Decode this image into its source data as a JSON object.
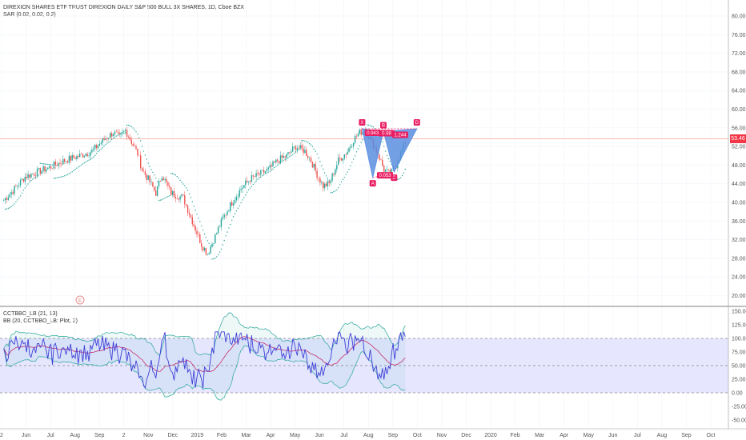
{
  "legend": {
    "symbol": "DIREXION SHARES ETF TRUST DIREXION DAILY S&P 500 BULL 3X SHARES, 1D, Cboe BZX",
    "sar": "SAR (0.02, 0.02, 0.2)",
    "osc": "CCTBBO_LB (21, 13)",
    "bb": "BB (20, CCTBBO_LB: Plot, 2)"
  },
  "last_price": "53.46",
  "event_marker": "E",
  "colors": {
    "up": "#26a69a",
    "down": "#ef5350",
    "sar": "#26a69a",
    "pattern_fill": "#5a8ee0",
    "pattern_label": "#e91e63",
    "osc_line": "#3f3fd8",
    "bb_basis": "#c2185b",
    "bb_band": "#26a69a",
    "osc_bg": "#e6e6ff",
    "price_line": "#f7a199"
  },
  "chart_data": [
    {
      "type": "candlestick",
      "title": "DIREXION SHARES ETF TRUST DIREXION DAILY S&P 500 BULL 3X SHARES, 1D, Cboe BZX",
      "y_ticks": [
        "80.00",
        "76.00",
        "72.00",
        "68.00",
        "64.00",
        "60.00",
        "56.00",
        "52.00",
        "48.00",
        "44.00",
        "40.00",
        "36.00",
        "32.00",
        "28.00",
        "24.00",
        "20.00"
      ],
      "ylim": [
        18.4,
        82.0
      ],
      "x_ticks": [
        "2",
        "Jun",
        "Jul",
        "Aug",
        "Sep",
        "2",
        "Nov",
        "Dec",
        "2019",
        "Feb",
        "Mar",
        "Apr",
        "May",
        "Jun",
        "Jul",
        "Aug",
        "Sep",
        "Oct",
        "Nov",
        "Dec",
        "2020",
        "Feb",
        "Mar",
        "Apr",
        "May",
        "Jun",
        "Jul",
        "Aug",
        "Sep",
        "Oct"
      ],
      "anchors": [
        [
          0,
          40.5
        ],
        [
          6,
          42.5
        ],
        [
          14,
          45.5
        ],
        [
          22,
          46.5
        ],
        [
          30,
          47.5
        ],
        [
          40,
          49
        ],
        [
          50,
          50
        ],
        [
          58,
          51
        ],
        [
          66,
          53.5
        ],
        [
          72,
          55
        ],
        [
          76,
          54
        ],
        [
          80,
          55.5
        ],
        [
          84,
          53
        ],
        [
          88,
          50.5
        ],
        [
          91,
          47
        ],
        [
          95,
          45
        ],
        [
          100,
          42
        ],
        [
          104,
          46
        ],
        [
          110,
          42
        ],
        [
          118,
          41
        ],
        [
          124,
          36
        ],
        [
          130,
          31
        ],
        [
          134,
          29
        ],
        [
          138,
          32
        ],
        [
          144,
          36.5
        ],
        [
          150,
          40
        ],
        [
          156,
          43
        ],
        [
          162,
          45
        ],
        [
          168,
          46
        ],
        [
          174,
          47
        ],
        [
          180,
          49
        ],
        [
          186,
          50
        ],
        [
          192,
          52
        ],
        [
          198,
          51
        ],
        [
          202,
          49
        ],
        [
          206,
          46
        ],
        [
          210,
          43.5
        ],
        [
          214,
          44
        ],
        [
          220,
          49
        ],
        [
          226,
          51
        ],
        [
          230,
          53.5
        ],
        [
          234,
          55
        ],
        [
          238,
          55.5
        ],
        [
          242,
          53
        ],
        [
          246,
          50.5
        ],
        [
          250,
          47
        ],
        [
          254,
          46
        ],
        [
          258,
          48
        ],
        [
          264,
          53
        ]
      ],
      "current_price": 53.46,
      "harmonic_pattern": {
        "points": [
          "X",
          "A",
          "B",
          "C",
          "D"
        ],
        "ratios": [
          "0.943",
          "0.98",
          "1.244",
          "0.053"
        ]
      }
    },
    {
      "type": "line",
      "title": "CCTBBO_LB (21, 13)",
      "y_ticks": [
        "150.00",
        "125.00",
        "100.00",
        "75.00",
        "50.00",
        "25.00",
        "0.00",
        "-25.00",
        "-50.00"
      ],
      "ylim": [
        -60,
        160
      ],
      "bands": [
        100,
        50,
        0
      ],
      "series": [
        {
          "name": "CCTBBO_LB (21, 13)"
        },
        {
          "name": "BB (20, CCTBBO_LB: Plot, 2)"
        }
      ]
    }
  ]
}
